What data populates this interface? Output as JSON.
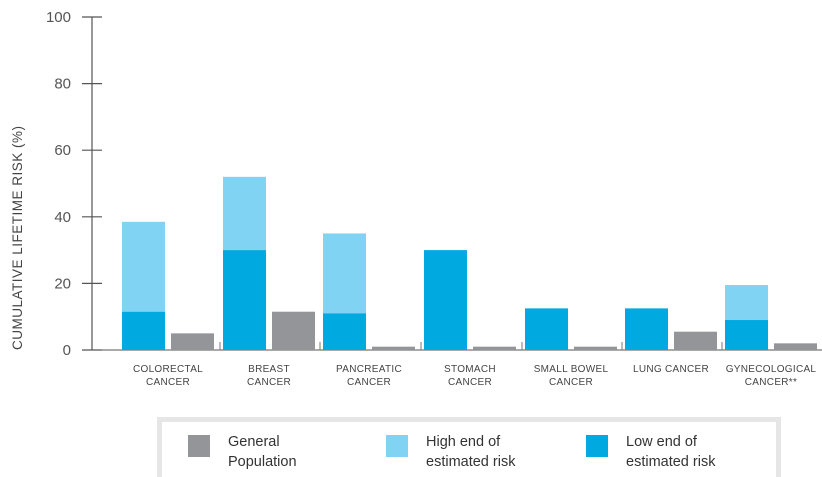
{
  "chart_data": {
    "type": "bar",
    "ylabel": "CUMULATIVE LIFETIME RISK (%)",
    "ylim": [
      0,
      100
    ],
    "yticks": [
      "0",
      "20",
      "40",
      "60",
      "80",
      "100"
    ],
    "categories": [
      [
        "COLORECTAL",
        "CANCER"
      ],
      [
        "BREAST",
        "CANCER"
      ],
      [
        "PANCREATIC",
        "CANCER"
      ],
      [
        "STOMACH",
        "CANCER"
      ],
      [
        "SMALL BOWEL",
        "CANCER"
      ],
      [
        "LUNG CANCER"
      ],
      [
        "GYNECOLOGICAL",
        "CANCER**"
      ]
    ],
    "series": [
      {
        "name": "Low end of estimated risk",
        "values": [
          11.5,
          30,
          11,
          30,
          12.5,
          12.5,
          9
        ]
      },
      {
        "name": "High end of estimated risk",
        "values": [
          38.5,
          52,
          35,
          null,
          null,
          null,
          19.5
        ]
      },
      {
        "name": "General Population",
        "values": [
          5,
          11.5,
          1,
          1,
          1,
          5.5,
          2
        ]
      }
    ],
    "colors": {
      "low": "#00a9e0",
      "high": "#80d3f3",
      "general": "#939598",
      "axis": "#555555",
      "legend_border": "#e6e6e6"
    },
    "legend": [
      {
        "key": "general",
        "lines": [
          "General",
          "Population"
        ]
      },
      {
        "key": "high",
        "lines": [
          "High end of",
          "estimated risk"
        ]
      },
      {
        "key": "low",
        "lines": [
          "Low end of",
          "estimated risk"
        ]
      }
    ]
  }
}
